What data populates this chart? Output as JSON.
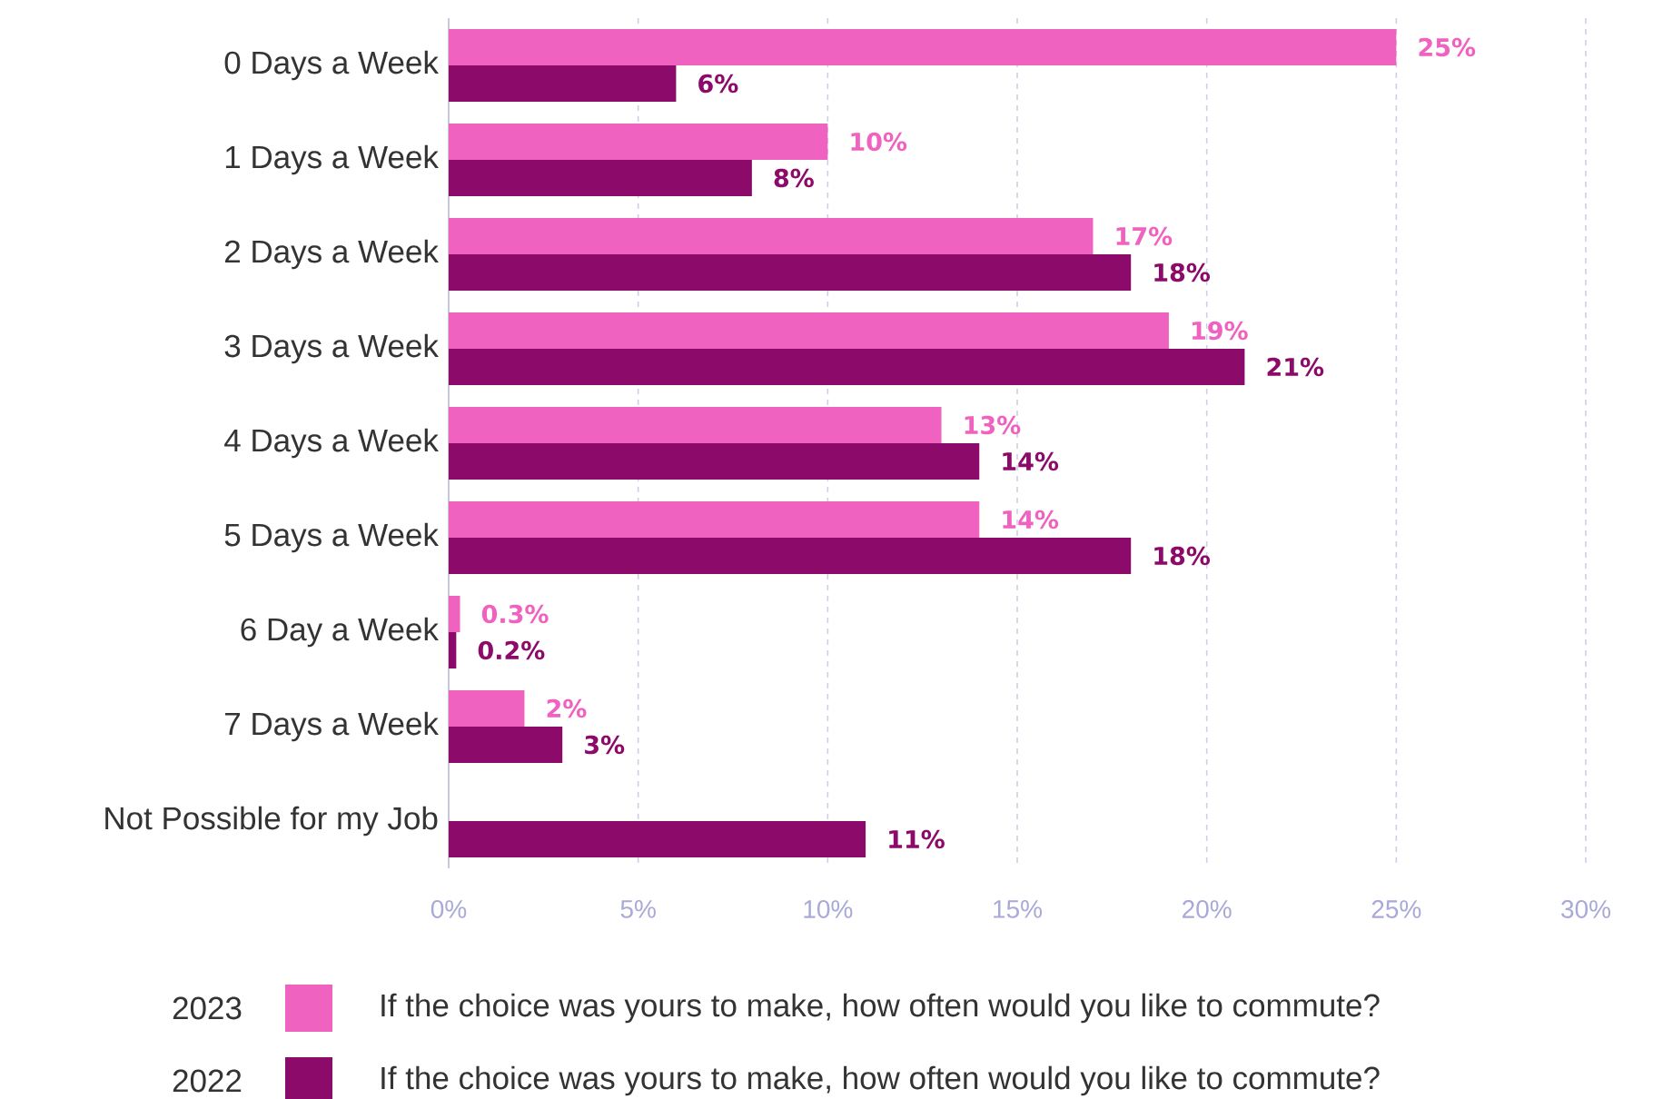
{
  "chart_data": {
    "type": "bar",
    "orientation": "horizontal",
    "categories": [
      "0 Days a Week",
      "1 Days a Week",
      "2 Days a Week",
      "3 Days a Week",
      "4 Days a Week",
      "5 Days a Week",
      "6 Day a Week",
      "7 Days a Week",
      "Not Possible for my Job"
    ],
    "series": [
      {
        "name": "2023",
        "color": "#f062c0",
        "values": [
          25,
          10,
          17,
          19,
          13,
          14,
          0.3,
          2,
          null
        ],
        "value_labels": [
          "25%",
          "10%",
          "17%",
          "19%",
          "13%",
          "14%",
          "0.3%",
          "2%",
          null
        ]
      },
      {
        "name": "2022",
        "color": "#8b0a6a",
        "values": [
          6,
          8,
          18,
          21,
          14,
          18,
          0.2,
          3,
          11
        ],
        "value_labels": [
          "6%",
          "8%",
          "18%",
          "21%",
          "14%",
          "18%",
          "0.2%",
          "3%",
          "11%"
        ]
      }
    ],
    "xlim": [
      0,
      30
    ],
    "xticks": [
      {
        "value": 0,
        "label": "0%"
      },
      {
        "value": 5,
        "label": "5%"
      },
      {
        "value": 10,
        "label": "10%"
      },
      {
        "value": 15,
        "label": "15%"
      },
      {
        "value": 20,
        "label": "20%"
      },
      {
        "value": 25,
        "label": "25%"
      },
      {
        "value": 30,
        "label": "30%"
      }
    ],
    "grid": "x",
    "legend": "bottom",
    "annotations": [
      "If the choice was yours to make, how often would you like to commute?",
      "If the choice was yours to make, how often would you like to commute?"
    ]
  }
}
